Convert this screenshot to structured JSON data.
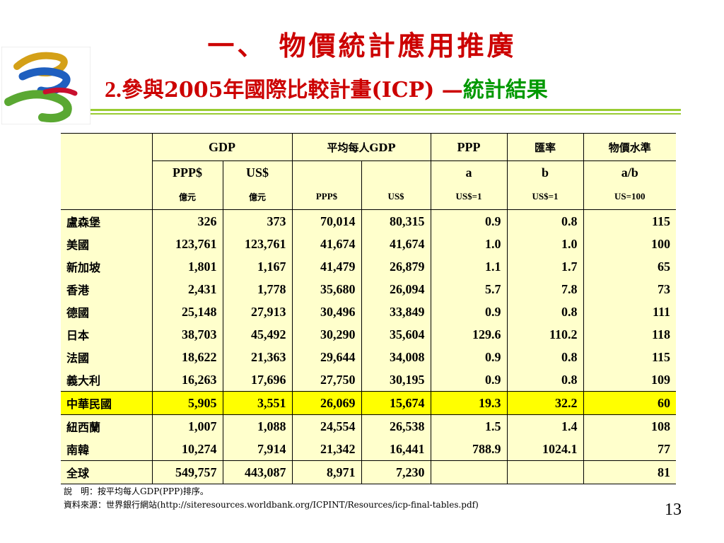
{
  "slide": {
    "title": "一、 物價統計應用推廣",
    "subtitle_num": "2.",
    "subtitle_main": "參與2005年國際比較計畫(ICP) —",
    "subtitle_accent": "統計結果",
    "page_number": "13"
  },
  "colors": {
    "title": "#cc0000",
    "accent_green": "#009900",
    "rule": "#99cc33",
    "table_bg": "#ffffcc",
    "highlight": "#ffff00"
  },
  "table": {
    "group_headers": [
      "GDP",
      "平均每人GDP",
      "PPP",
      "匯率",
      "物價水準"
    ],
    "sub_headers": [
      "PPP$",
      "US$",
      "",
      "",
      "a",
      "b",
      "a/b"
    ],
    "unit_headers": [
      "億元",
      "億元",
      "PPP$",
      "US$",
      "US$=1",
      "US$=1",
      "US=100"
    ],
    "rows": [
      {
        "country": "盧森堡",
        "v": [
          "326",
          "373",
          "70,014",
          "80,315",
          "0.9",
          "0.8",
          "115"
        ]
      },
      {
        "country": "美國",
        "v": [
          "123,761",
          "123,761",
          "41,674",
          "41,674",
          "1.0",
          "1.0",
          "100"
        ]
      },
      {
        "country": "新加坡",
        "v": [
          "1,801",
          "1,167",
          "41,479",
          "26,879",
          "1.1",
          "1.7",
          "65"
        ]
      },
      {
        "country": "香港",
        "v": [
          "2,431",
          "1,778",
          "35,680",
          "26,094",
          "5.7",
          "7.8",
          "73"
        ]
      },
      {
        "country": "德國",
        "v": [
          "25,148",
          "27,913",
          "30,496",
          "33,849",
          "0.9",
          "0.8",
          "111"
        ]
      },
      {
        "country": "日本",
        "v": [
          "38,703",
          "45,492",
          "30,290",
          "35,604",
          "129.6",
          "110.2",
          "118"
        ]
      },
      {
        "country": "法國",
        "v": [
          "18,622",
          "21,363",
          "29,644",
          "34,008",
          "0.9",
          "0.8",
          "115"
        ]
      },
      {
        "country": "義大利",
        "v": [
          "16,263",
          "17,696",
          "27,750",
          "30,195",
          "0.9",
          "0.8",
          "109"
        ]
      },
      {
        "country": "中華民國",
        "v": [
          "5,905",
          "3,551",
          "26,069",
          "15,674",
          "19.3",
          "32.2",
          "60"
        ]
      },
      {
        "country": "紐西蘭",
        "v": [
          "1,007",
          "1,088",
          "24,554",
          "26,538",
          "1.5",
          "1.4",
          "108"
        ]
      },
      {
        "country": "南韓",
        "v": [
          "10,274",
          "7,914",
          "21,342",
          "16,441",
          "788.9",
          "1024.1",
          "77"
        ]
      }
    ],
    "total": {
      "country": "全球",
      "v": [
        "549,757",
        "443,087",
        "8,971",
        "7,230",
        "",
        "",
        "81"
      ]
    }
  },
  "notes": {
    "line1": "說　明：按平均每人GDP(PPP)排序。",
    "line2": "資料來源：世界銀行網站(http://siteresources.worldbank.org/ICPINT/Resources/icp-final-tables.pdf)"
  }
}
